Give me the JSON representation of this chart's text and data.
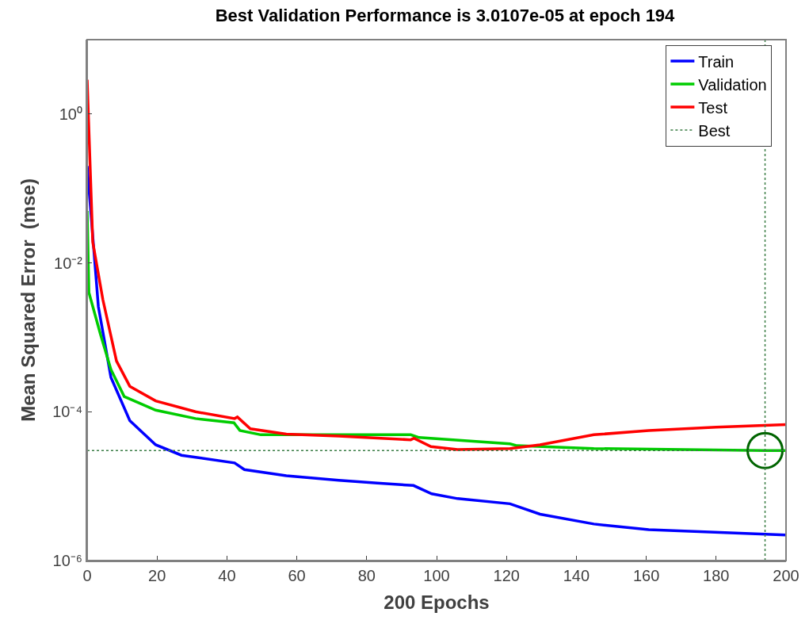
{
  "chart_data": {
    "type": "line",
    "title": "Best Validation Performance is 3.0107e-05 at epoch 194",
    "xlabel": "200 Epochs",
    "ylabel": "Mean Squared Error  (mse)",
    "log": "y",
    "xlim": [
      0,
      200
    ],
    "xticks": [
      0,
      20,
      40,
      60,
      80,
      100,
      120,
      140,
      160,
      180,
      200
    ],
    "ylim": [
      1e-06,
      10
    ],
    "yticks": [
      {
        "value": 1e-06,
        "label": "10⁻⁶"
      },
      {
        "value": 0.0001,
        "label": "10⁻⁴"
      },
      {
        "value": 0.01,
        "label": "10⁻²"
      },
      {
        "value": 1,
        "label": "10⁰"
      }
    ],
    "legend": "top right",
    "line_style": "solid",
    "marker": "none",
    "series": [
      {
        "name": "Train",
        "color": "#0000ff",
        "x": [
          0,
          3.2,
          6.8,
          12.2,
          19.6,
          27,
          42.2,
          45,
          57,
          72,
          83,
          93.4,
          98.6,
          106,
          121,
          129.6,
          145,
          160.7,
          200
        ],
        "values": [
          0.2,
          0.0026,
          0.00029,
          7.6e-05,
          3.6e-05,
          2.6e-05,
          2.05e-05,
          1.67e-05,
          1.38e-05,
          1.2e-05,
          1.1e-05,
          1.02e-05,
          7.9e-06,
          6.8e-06,
          5.8e-06,
          4.2e-06,
          3.1e-06,
          2.6e-06,
          2.2e-06
        ]
      },
      {
        "name": "Validation",
        "color": "#00cc00",
        "x": [
          0,
          0.5,
          3.8,
          6.8,
          10.6,
          19.6,
          31,
          42,
          43.7,
          49.7,
          72,
          92.6,
          95,
          121,
          123,
          145,
          194,
          200
        ],
        "values": [
          0.05,
          0.004,
          0.0011,
          0.00037,
          0.00016,
          0.000105,
          8.1e-05,
          7.1e-05,
          5.6e-05,
          4.9e-05,
          4.9e-05,
          4.9e-05,
          4.5e-05,
          3.7e-05,
          3.5e-05,
          3.2e-05,
          3.0107e-05,
          3e-05
        ]
      },
      {
        "name": "Test",
        "color": "#ff0000",
        "x": [
          0,
          1.6,
          4.5,
          8.4,
          12.2,
          19.6,
          31,
          42.2,
          43,
          46.7,
          57,
          72,
          92.6,
          93.5,
          98.4,
          106,
          121,
          129.6,
          145,
          160.7,
          180,
          200
        ],
        "values": [
          2.9,
          0.019,
          0.0032,
          0.00048,
          0.00022,
          0.00014,
          0.0001,
          8.1e-05,
          8.5e-05,
          5.9e-05,
          5e-05,
          4.7e-05,
          4.2e-05,
          4.4e-05,
          3.4e-05,
          3.1e-05,
          3.2e-05,
          3.6e-05,
          4.9e-05,
          5.6e-05,
          6.2e-05,
          6.7e-05
        ]
      },
      {
        "type": "scatter",
        "color": "#006400",
        "x": [
          194
        ],
        "values": [
          3.0107e-05
        ],
        "marker": "circle"
      }
    ],
    "ref_lines": [
      {
        "axis": "x",
        "value": 194,
        "label": "Best",
        "color": "#3a7d44",
        "line_style": "dotted"
      },
      {
        "axis": "y",
        "value": 3.0107e-05,
        "color": "#3a7d44",
        "line_style": "dotted"
      }
    ]
  }
}
